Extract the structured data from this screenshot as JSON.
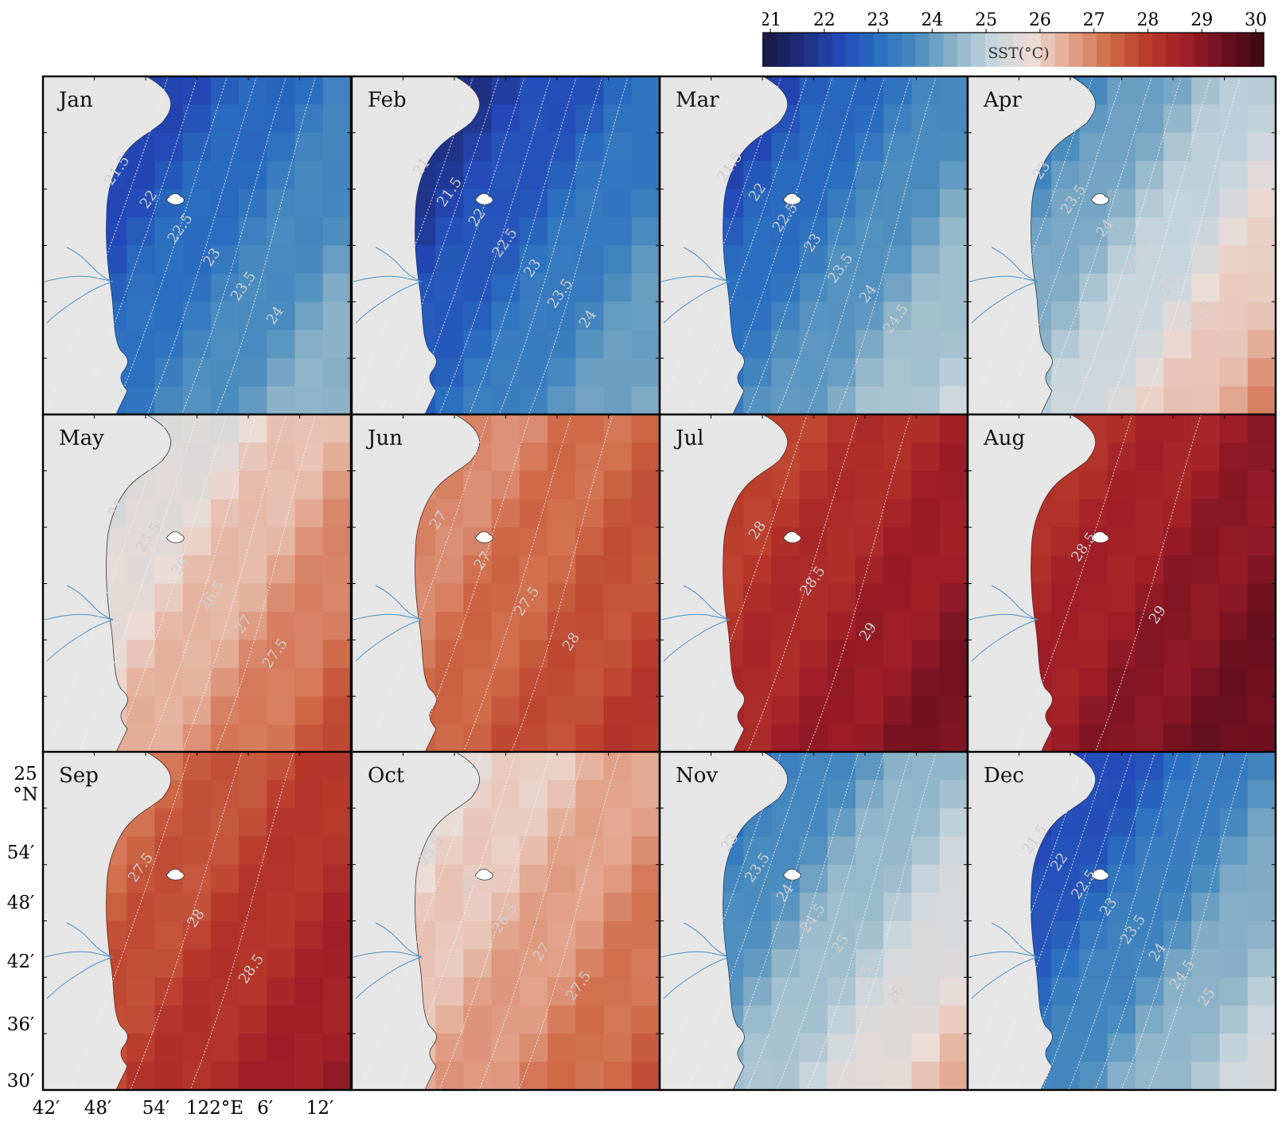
{
  "colorbar": {
    "title": "SST(°C)",
    "ticks": [
      "21",
      "22",
      "23",
      "24",
      "25",
      "26",
      "27",
      "28",
      "29",
      "30"
    ],
    "range": [
      21,
      30
    ]
  },
  "axes": {
    "lat_top": "25",
    "lat_unit": "°N",
    "y_ticks": [
      "54′",
      "48′",
      "42′",
      "36′",
      "30′"
    ],
    "x_ticks": [
      "42′",
      "48′",
      "54′",
      "122°E",
      "6′",
      "12′"
    ]
  },
  "panels": [
    {
      "month": "Jan",
      "base": 23.3,
      "gradient": 2.6,
      "contours": [
        "21.5",
        "22",
        "22.5",
        "23",
        "23.5",
        "24"
      ]
    },
    {
      "month": "Feb",
      "base": 23.0,
      "gradient": 2.8,
      "contours": [
        "21",
        "21.5",
        "22",
        "22.5",
        "23",
        "23.5",
        "24"
      ]
    },
    {
      "month": "Mar",
      "base": 23.6,
      "gradient": 3.2,
      "contours": [
        "21.5",
        "22",
        "22.5",
        "23",
        "23.5",
        "24",
        "24.5"
      ]
    },
    {
      "month": "Apr",
      "base": 25.0,
      "gradient": 3.6,
      "contours": [
        "23",
        "23.5",
        "24",
        "24.5",
        "25",
        "25.5"
      ]
    },
    {
      "month": "May",
      "base": 26.3,
      "gradient": 2.6,
      "contours": [
        "25",
        "25.5",
        "26",
        "26.5",
        "27",
        "27.5"
      ]
    },
    {
      "month": "Jun",
      "base": 27.3,
      "gradient": 1.4,
      "contours": [
        "27",
        "27",
        "27.5",
        "28"
      ]
    },
    {
      "month": "Jul",
      "base": 28.4,
      "gradient": 1.6,
      "contours": [
        "28",
        "28.5",
        "29"
      ]
    },
    {
      "month": "Aug",
      "base": 28.7,
      "gradient": 1.4,
      "contours": [
        "28.5",
        "29"
      ]
    },
    {
      "month": "Sep",
      "base": 27.9,
      "gradient": 1.8,
      "contours": [
        "27.5",
        "28",
        "28.5"
      ]
    },
    {
      "month": "Oct",
      "base": 26.5,
      "gradient": 2.0,
      "contours": [
        "25.5",
        "26",
        "26.5",
        "27",
        "27.5"
      ]
    },
    {
      "month": "Nov",
      "base": 24.6,
      "gradient": 3.4,
      "contours": [
        "23",
        "23.5",
        "24",
        "24.5",
        "25",
        "25.5",
        "26"
      ]
    },
    {
      "month": "Dec",
      "base": 23.6,
      "gradient": 3.6,
      "contours": [
        "21.5",
        "22",
        "22.5",
        "23",
        "23.5",
        "24",
        "24.5",
        "25"
      ]
    }
  ],
  "colors": {
    "land": "#e6e6e6",
    "river": "#4a90c8",
    "cmap": [
      "#191a3e",
      "#1f2d7a",
      "#2448b8",
      "#2a6fc0",
      "#4a8cbf",
      "#8fb4c8",
      "#c8d6de",
      "#ecdcd6",
      "#e2a48c",
      "#cf6a48",
      "#b83a2a",
      "#a01e28",
      "#6a0f1e",
      "#3a0812"
    ]
  }
}
